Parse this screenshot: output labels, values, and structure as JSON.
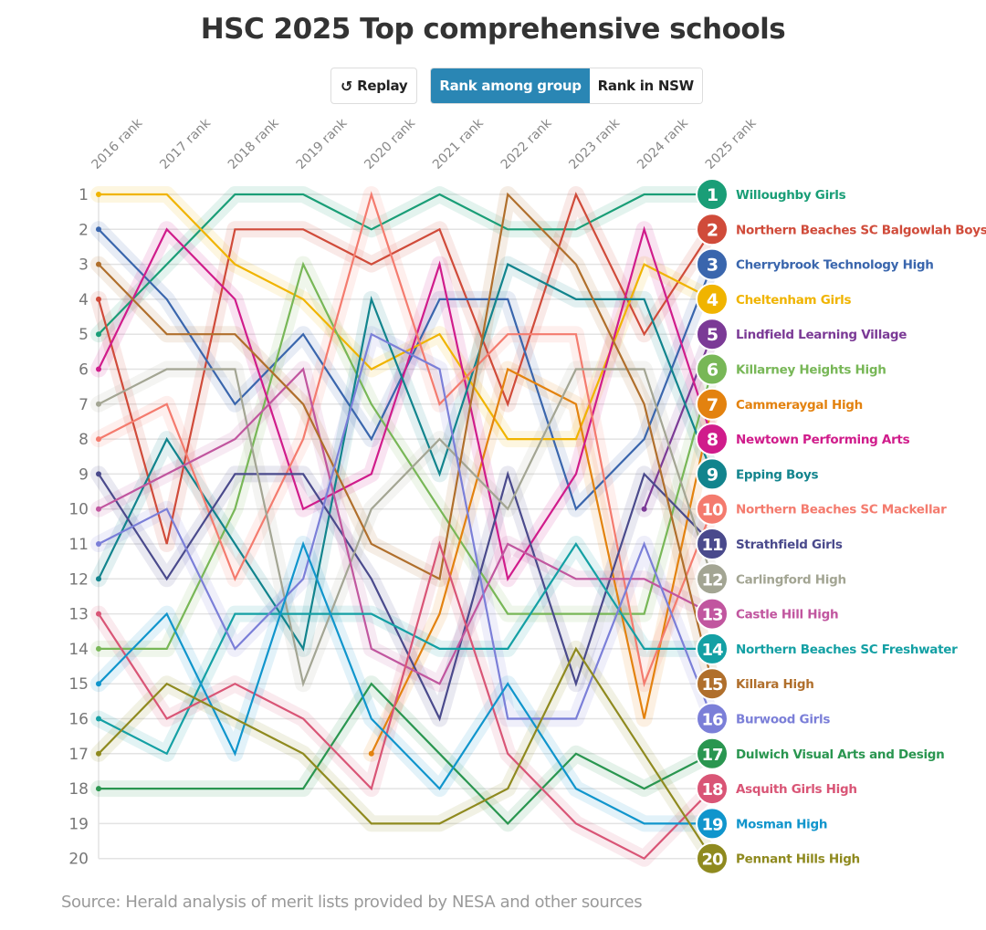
{
  "title": "HSC 2025 Top comprehensive schools",
  "controls": {
    "replay_label": "Replay",
    "replay_icon": "replay-icon",
    "toggle_options": [
      "Rank among group",
      "Rank in NSW"
    ],
    "active_option": "Rank among group"
  },
  "source": "Source: Herald analysis of merit lists provided by NESA and other sources",
  "chart_data": {
    "type": "line",
    "subtype": "bump",
    "title": "HSC 2025 Top comprehensive schools",
    "x": [
      "2016 rank",
      "2017 rank",
      "2018 rank",
      "2019 rank",
      "2020 rank",
      "2021 rank",
      "2022 rank",
      "2023 rank",
      "2024 rank",
      "2025 rank"
    ],
    "y_ticks": [
      1,
      2,
      3,
      4,
      5,
      6,
      7,
      8,
      9,
      10,
      11,
      12,
      13,
      14,
      15,
      16,
      17,
      18,
      19,
      20
    ],
    "ylim": [
      1,
      20
    ],
    "y_inverted": true,
    "grid": true,
    "legend": "right",
    "series": [
      {
        "name": "Willoughby Girls",
        "color": "#1a9e77",
        "values": [
          5,
          3,
          1,
          1,
          2,
          1,
          2,
          2,
          1,
          1
        ]
      },
      {
        "name": "Northern Beaches SC Balgowlah Boys",
        "color": "#d04b3a",
        "values": [
          4,
          11,
          2,
          2,
          3,
          2,
          7,
          1,
          5,
          2
        ]
      },
      {
        "name": "Cherrybrook Technology High",
        "color": "#3a66ad",
        "values": [
          2,
          4,
          7,
          5,
          8,
          4,
          4,
          10,
          8,
          3
        ]
      },
      {
        "name": "Cheltenham Girls",
        "color": "#f0b400",
        "values": [
          1,
          1,
          3,
          4,
          6,
          5,
          8,
          8,
          3,
          4
        ]
      },
      {
        "name": "Lindfield Learning Village",
        "color": "#7b3a96",
        "values": [
          null,
          null,
          null,
          null,
          null,
          null,
          null,
          null,
          10,
          5
        ]
      },
      {
        "name": "Killarney Heights High",
        "color": "#78b757",
        "values": [
          14,
          14,
          10,
          3,
          7,
          10,
          13,
          13,
          13,
          6
        ]
      },
      {
        "name": "Cammeraygal High",
        "color": "#e3820f",
        "values": [
          null,
          null,
          null,
          null,
          17,
          13,
          6,
          7,
          16,
          7
        ]
      },
      {
        "name": "Newtown Performing Arts",
        "color": "#d01c8b",
        "values": [
          6,
          2,
          4,
          10,
          9,
          3,
          12,
          9,
          2,
          8
        ]
      },
      {
        "name": "Epping Boys",
        "color": "#12848d",
        "values": [
          12,
          8,
          11,
          14,
          4,
          9,
          3,
          4,
          4,
          9
        ]
      },
      {
        "name": "Northern Beaches SC Mackellar",
        "color": "#f47b6e",
        "values": [
          8,
          7,
          12,
          8,
          1,
          7,
          5,
          5,
          15,
          10
        ]
      },
      {
        "name": "Strathfield Girls",
        "color": "#4a4a8c",
        "values": [
          9,
          12,
          9,
          9,
          12,
          16,
          9,
          15,
          9,
          11
        ]
      },
      {
        "name": "Carlingford High",
        "color": "#a3a593",
        "values": [
          7,
          6,
          6,
          15,
          10,
          8,
          10,
          6,
          6,
          12
        ]
      },
      {
        "name": "Castle Hill High",
        "color": "#c1569f",
        "values": [
          10,
          9,
          8,
          6,
          14,
          15,
          11,
          12,
          12,
          13
        ]
      },
      {
        "name": "Northern Beaches SC Freshwater",
        "color": "#14a0a4",
        "values": [
          16,
          17,
          13,
          13,
          13,
          14,
          14,
          11,
          14,
          14
        ]
      },
      {
        "name": "Killara High",
        "color": "#b06f2c",
        "values": [
          3,
          5,
          5,
          7,
          11,
          12,
          1,
          3,
          7,
          15
        ]
      },
      {
        "name": "Burwood Girls",
        "color": "#7b7fd8",
        "values": [
          11,
          10,
          14,
          12,
          5,
          6,
          16,
          16,
          11,
          16
        ]
      },
      {
        "name": "Dulwich Visual Arts and Design",
        "color": "#2a9650",
        "values": [
          18,
          18,
          18,
          18,
          15,
          17,
          19,
          17,
          18,
          17
        ]
      },
      {
        "name": "Asquith Girls High",
        "color": "#d95576",
        "values": [
          13,
          16,
          15,
          16,
          18,
          11,
          17,
          19,
          20,
          18
        ]
      },
      {
        "name": "Mosman High",
        "color": "#1095cc",
        "values": [
          15,
          13,
          17,
          11,
          16,
          18,
          15,
          18,
          19,
          19
        ]
      },
      {
        "name": "Pennant Hills High",
        "color": "#8f8a1f",
        "values": [
          17,
          15,
          16,
          17,
          19,
          19,
          18,
          14,
          17,
          20
        ]
      }
    ]
  }
}
